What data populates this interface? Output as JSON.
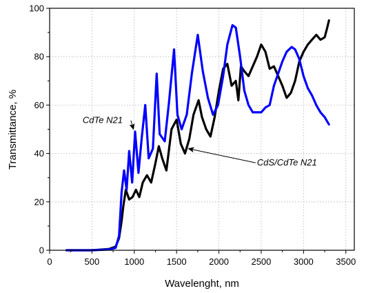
{
  "chart_data": {
    "type": "line",
    "xlabel": "Wavelenght, nm",
    "ylabel": "Transmittance, %",
    "xlim": [
      0,
      3600
    ],
    "ylim": [
      0,
      100
    ],
    "x_ticks": [
      0,
      500,
      1000,
      1500,
      2000,
      2500,
      3000,
      3500
    ],
    "y_ticks": [
      0,
      20,
      40,
      60,
      80,
      100
    ],
    "grid": true,
    "grid_style": "dotted",
    "legend": "none",
    "series": [
      {
        "name": "CdS/CdTe N21",
        "color": "#000000",
        "x": [
          200,
          500,
          700,
          780,
          820,
          850,
          870,
          900,
          940,
          980,
          1020,
          1060,
          1100,
          1150,
          1200,
          1250,
          1290,
          1330,
          1380,
          1440,
          1500,
          1550,
          1600,
          1650,
          1700,
          1760,
          1800,
          1850,
          1900,
          1950,
          2000,
          2050,
          2100,
          2150,
          2200,
          2230,
          2260,
          2300,
          2350,
          2400,
          2450,
          2500,
          2550,
          2600,
          2650,
          2700,
          2750,
          2800,
          2850,
          2900,
          2950,
          3000,
          3050,
          3100,
          3150,
          3200,
          3250,
          3280,
          3300
        ],
        "y": [
          0,
          0,
          0.5,
          1.5,
          5,
          12,
          18,
          25,
          21,
          22,
          25,
          22,
          28,
          31,
          28,
          36,
          43,
          38,
          33,
          50,
          54,
          44,
          40,
          46,
          56,
          62,
          55,
          50,
          47,
          55,
          66,
          75,
          77,
          68,
          70,
          62,
          76,
          74,
          72,
          76,
          80,
          85,
          82,
          75,
          76,
          72,
          68,
          63,
          65,
          70,
          78,
          82,
          85,
          87,
          89,
          87,
          88,
          92,
          95
        ]
      },
      {
        "name": "CdTe N21",
        "color": "#0000ff",
        "x": [
          200,
          500,
          700,
          780,
          820,
          850,
          880,
          910,
          940,
          975,
          1010,
          1050,
          1090,
          1130,
          1170,
          1220,
          1265,
          1300,
          1360,
          1410,
          1470,
          1510,
          1560,
          1620,
          1680,
          1750,
          1810,
          1870,
          1930,
          1990,
          2050,
          2100,
          2160,
          2200,
          2250,
          2300,
          2350,
          2400,
          2450,
          2500,
          2550,
          2600,
          2650,
          2700,
          2750,
          2800,
          2860,
          2900,
          2950,
          3000,
          3050,
          3100,
          3150,
          3200,
          3250,
          3300
        ],
        "y": [
          0,
          0,
          0.3,
          1,
          6,
          24,
          33,
          25,
          41,
          28,
          49,
          32,
          47,
          60,
          38,
          42,
          73,
          48,
          45,
          61,
          83,
          56,
          50,
          56,
          73,
          89,
          74,
          63,
          56,
          60,
          72,
          85,
          93,
          92,
          80,
          66,
          60,
          57,
          57,
          57,
          59,
          60,
          68,
          73,
          78,
          82,
          84,
          83,
          79,
          72,
          67,
          64,
          60,
          57,
          55,
          52
        ]
      }
    ],
    "annotations": [
      {
        "text": "CdTe N21",
        "x": 390,
        "y": 52.5,
        "arrow_to": [
          990,
          50
        ]
      },
      {
        "text": "CdS/CdTe N21",
        "x": 2450,
        "y": 35,
        "arrow_to": [
          1640,
          42
        ]
      }
    ]
  }
}
